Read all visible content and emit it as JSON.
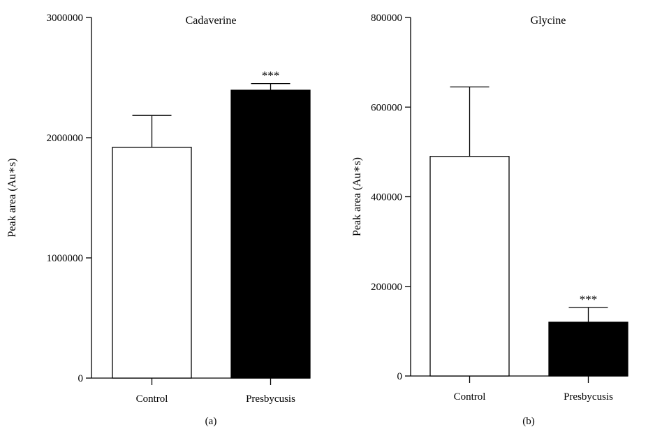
{
  "chart_data": [
    {
      "type": "bar",
      "panel_label": "(a)",
      "title": "Cadaverine",
      "ylabel": "Peak area (Au∗s)",
      "xlabel": "",
      "categories": [
        "Control",
        "Presbycusis"
      ],
      "values": [
        1920000,
        2395000
      ],
      "errors": [
        265000,
        55000
      ],
      "bar_colors": [
        "#ffffff",
        "#000000"
      ],
      "significance": [
        "",
        "***"
      ],
      "ylim": [
        0,
        3000000
      ],
      "yticks": [
        0,
        1000000,
        2000000,
        3000000
      ],
      "ytick_labels": [
        "0",
        "1000000",
        "2000000",
        "3000000"
      ],
      "grid": false
    },
    {
      "type": "bar",
      "panel_label": "(b)",
      "title": "Glycine",
      "ylabel": "Peak area (Au∗s)",
      "xlabel": "",
      "categories": [
        "Control",
        "Presbycusis"
      ],
      "values": [
        490000,
        120000
      ],
      "errors": [
        155000,
        33000
      ],
      "bar_colors": [
        "#ffffff",
        "#000000"
      ],
      "significance": [
        "",
        "***"
      ],
      "ylim": [
        0,
        800000
      ],
      "yticks": [
        0,
        200000,
        400000,
        600000,
        800000
      ],
      "ytick_labels": [
        "0",
        "200000",
        "400000",
        "600000",
        "800000"
      ],
      "grid": false
    }
  ]
}
